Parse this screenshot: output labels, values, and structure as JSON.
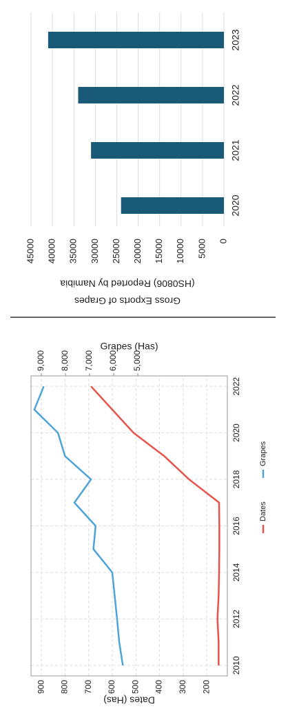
{
  "chart_data": [
    {
      "type": "line",
      "x": [
        2010,
        2011,
        2012,
        2013,
        2014,
        2015,
        2016,
        2017,
        2018,
        2019,
        2020,
        2021,
        2022
      ],
      "xlim": [
        2009.55,
        2022.45
      ],
      "xticks": [
        2010,
        2012,
        2014,
        2016,
        2018,
        2020,
        2022
      ],
      "ylabel": "Dates (Has)",
      "y2label": "Grapes (Has)",
      "ylim": [
        113,
        944
      ],
      "yticks": [
        200,
        300,
        400,
        500,
        600,
        700,
        800,
        900
      ],
      "y2lim": [
        1286,
        9429
      ],
      "y2ticks": [
        {
          "value": 5000,
          "label": "5,000"
        },
        {
          "value": 6000,
          "label": "6,000"
        },
        {
          "value": 7000,
          "label": "7,000"
        },
        {
          "value": 8000,
          "label": "8,000"
        },
        {
          "value": 9000,
          "label": "9,000"
        }
      ],
      "grid": true,
      "series": [
        {
          "name": "Dates",
          "color": "#e8524a",
          "values": [
            150,
            150,
            155,
            150,
            148,
            147,
            147,
            148,
            275,
            380,
            510,
            600,
            690
          ]
        },
        {
          "name": "Grapes",
          "color": "#4ea3d8",
          "axis": "y2",
          "values": [
            5620,
            5770,
            5860,
            5960,
            6060,
            6840,
            6750,
            7630,
            6940,
            8020,
            8310,
            9290,
            8900
          ]
        }
      ]
    },
    {
      "type": "bar",
      "ylabel": "Gross Exports of Grapes (HS0806) Reported by Namibia",
      "categories": [
        "2020",
        "2021",
        "2022",
        "2023"
      ],
      "values": [
        24000,
        31000,
        34000,
        41000
      ],
      "color": "#195a78",
      "ylim": [
        0,
        45000
      ],
      "yticks": [
        0,
        5000,
        10000,
        15000,
        20000,
        25000,
        30000,
        35000,
        40000,
        45000
      ],
      "grid": true
    }
  ]
}
